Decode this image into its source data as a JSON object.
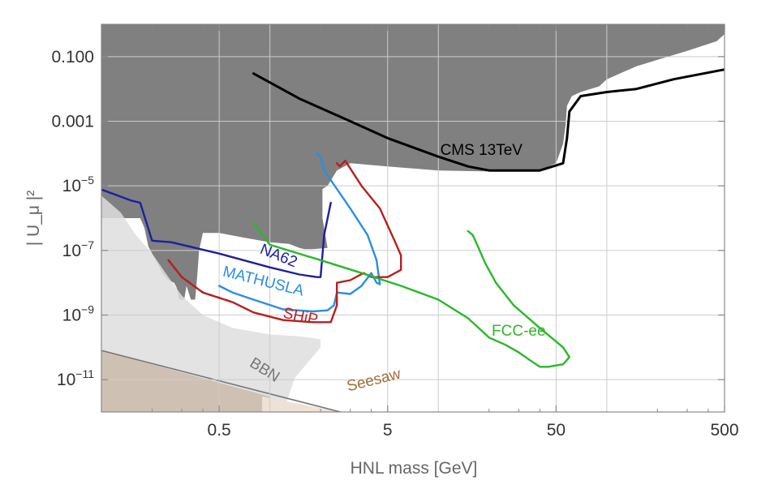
{
  "chart_data": {
    "type": "line",
    "xlabel": "HNL mass [GeV]",
    "ylabel": "| U_μ |²",
    "x_scale": "log",
    "y_scale": "log",
    "xlim": [
      0.1,
      500
    ],
    "ylim": [
      1e-12,
      1
    ],
    "x_ticks": [
      {
        "value": 0.5,
        "label": "0.5"
      },
      {
        "value": 5,
        "label": "5"
      },
      {
        "value": 50,
        "label": "50"
      },
      {
        "value": 500,
        "label": "500"
      }
    ],
    "x_minor_ticks": [
      0.2,
      0.3,
      0.4,
      2,
      3,
      4,
      20,
      30,
      40,
      200,
      300,
      400
    ],
    "x_gridlines": [
      0.5,
      1,
      5,
      10,
      50,
      100
    ],
    "y_ticks": [
      {
        "value": 0.1,
        "base": "0.100",
        "exp": ""
      },
      {
        "value": 0.001,
        "base": "0.001",
        "exp": ""
      },
      {
        "value": 1e-05,
        "base": "10",
        "exp": "−5"
      },
      {
        "value": 1e-07,
        "base": "10",
        "exp": "−7"
      },
      {
        "value": 1e-09,
        "base": "10",
        "exp": "−9"
      },
      {
        "value": 1e-11,
        "base": "10",
        "exp": "−11"
      }
    ],
    "grid": true,
    "regions": [
      {
        "name": "excluded",
        "color": "#808080",
        "points": [
          [
            0.1,
            1
          ],
          [
            500,
            1
          ],
          [
            500,
            0.5
          ],
          [
            450,
            0.3
          ],
          [
            300,
            0.15
          ],
          [
            200,
            0.08
          ],
          [
            150,
            0.05
          ],
          [
            100,
            0.02
          ],
          [
            90,
            0.012
          ],
          [
            70,
            0.008
          ],
          [
            62,
            0.006
          ],
          [
            58,
            0.003
          ],
          [
            57,
            0.0008
          ],
          [
            55,
            0.0002
          ],
          [
            50,
            5e-05
          ],
          [
            40,
            3e-05
          ],
          [
            20,
            2.8e-05
          ],
          [
            10,
            3e-05
          ],
          [
            5,
            4e-05
          ],
          [
            3,
            5e-05
          ],
          [
            2.5,
            3e-05
          ],
          [
            2.2,
            1e-05
          ],
          [
            2.05,
            8e-06
          ],
          [
            2.05,
            1e-06
          ],
          [
            2.2,
            1.2e-07
          ],
          [
            1.8,
            1.1e-07
          ],
          [
            1.6,
            1.1e-07
          ],
          [
            1.5,
            1.2e-07
          ],
          [
            1.3,
            1.6e-07
          ],
          [
            1.0,
            1.8e-07
          ],
          [
            0.7,
            2.5e-07
          ],
          [
            0.5,
            3.5e-07
          ],
          [
            0.4,
            3.5e-07
          ],
          [
            0.38,
            1e-07
          ],
          [
            0.37,
            1.5e-08
          ],
          [
            0.36,
            3e-09
          ],
          [
            0.34,
            3e-09
          ],
          [
            0.32,
            8e-09
          ],
          [
            0.31,
            3e-09
          ],
          [
            0.29,
            3e-09
          ],
          [
            0.28,
            7e-09
          ],
          [
            0.27,
            1e-08
          ],
          [
            0.25,
            1.2e-08
          ],
          [
            0.23,
            2e-08
          ],
          [
            0.21,
            5e-08
          ],
          [
            0.19,
            1.3e-07
          ],
          [
            0.18,
            5e-07
          ],
          [
            0.17,
            1e-06
          ],
          [
            0.15,
            1e-06
          ],
          [
            0.12,
            1e-06
          ],
          [
            0.1,
            1e-06
          ]
        ]
      },
      {
        "name": "light-gray",
        "color": "#dedede",
        "opacity": 0.85,
        "points": [
          [
            0.1,
            5e-06
          ],
          [
            0.13,
            1.5e-06
          ],
          [
            0.16,
            3e-07
          ],
          [
            0.2,
            8e-08
          ],
          [
            0.25,
            1.5e-08
          ],
          [
            0.3,
            4e-09
          ],
          [
            0.4,
            1e-09
          ],
          [
            0.6,
            4e-10
          ],
          [
            1.0,
            2.5e-10
          ],
          [
            1.5,
            2.2e-10
          ],
          [
            2.0,
            1.8e-10
          ],
          [
            2.0,
            1e-10
          ],
          [
            1.4,
            1.1e-11
          ],
          [
            1.2,
            1e-12
          ],
          [
            0.1,
            1e-12
          ]
        ]
      },
      {
        "name": "BBN-region",
        "color": "#cbbdae",
        "opacity": 0.9,
        "points": [
          [
            0.1,
            8e-11
          ],
          [
            1.0,
            3e-12
          ],
          [
            0.9,
            1e-12
          ],
          [
            0.1,
            1e-12
          ]
        ]
      },
      {
        "name": "Seesaw-region",
        "color": "#eee2d6",
        "opacity": 1,
        "points": [
          [
            0.9,
            3e-12
          ],
          [
            10,
            2.5e-13
          ],
          [
            50,
            2e-14
          ],
          [
            160,
            4e-15
          ],
          [
            10,
            1e-12
          ],
          [
            0.9,
            1e-12
          ]
        ]
      }
    ],
    "series": [
      {
        "name": "CMS 13TeV",
        "color": "#000000",
        "points": [
          [
            0.8,
            0.03
          ],
          [
            1.5,
            0.005
          ],
          [
            3,
            0.001
          ],
          [
            5,
            0.0003
          ],
          [
            10,
            8e-05
          ],
          [
            15,
            4e-05
          ],
          [
            20,
            3e-05
          ],
          [
            40,
            3e-05
          ],
          [
            55,
            5e-05
          ],
          [
            58,
            0.0003
          ],
          [
            60,
            0.002
          ],
          [
            70,
            0.006
          ],
          [
            100,
            0.008
          ],
          [
            150,
            0.01
          ],
          [
            250,
            0.02
          ],
          [
            500,
            0.04
          ]
        ]
      },
      {
        "name": "NA62",
        "color": "#1f1fa0",
        "points": [
          [
            0.1,
            7.7e-06
          ],
          [
            0.15,
            3.5e-06
          ],
          [
            0.17,
            3e-06
          ],
          [
            0.2,
            2e-07
          ],
          [
            0.26,
            1.8e-07
          ],
          [
            0.5,
            8e-08
          ],
          [
            1.0,
            3e-08
          ],
          [
            1.5,
            1.8e-08
          ],
          [
            1.9,
            1.5e-08
          ],
          [
            2.0,
            1.5e-08
          ],
          [
            2.1,
            3e-07
          ],
          [
            2.3,
            3e-06
          ]
        ]
      },
      {
        "name": "MATHUSLA",
        "color": "#2a8fe0",
        "points": [
          [
            0.5,
            8e-09
          ],
          [
            0.6,
            5e-09
          ],
          [
            0.8,
            3e-09
          ],
          [
            1.2,
            1.5e-09
          ],
          [
            1.8,
            1.3e-09
          ],
          [
            2.2,
            1.4e-09
          ],
          [
            2.4,
            2e-09
          ],
          [
            2.5,
            5e-09
          ],
          [
            3,
            4.5e-09
          ],
          [
            3.5,
            8e-09
          ],
          [
            4,
            2e-08
          ],
          [
            4.3,
            1e-08
          ],
          [
            4.5,
            9e-09
          ],
          [
            4.3,
            5e-08
          ],
          [
            3.8,
            3e-07
          ],
          [
            3.0,
            2e-06
          ],
          [
            2.5,
            8e-06
          ],
          [
            2.1,
            3e-05
          ],
          [
            2.0,
            8e-05
          ],
          [
            1.9,
            0.0001
          ]
        ]
      },
      {
        "name": "SHiP",
        "color": "#b52020",
        "points": [
          [
            0.25,
            5e-08
          ],
          [
            0.3,
            1.5e-08
          ],
          [
            0.4,
            5e-09
          ],
          [
            0.6,
            2.5e-09
          ],
          [
            0.8,
            1.2e-09
          ],
          [
            1.2,
            7e-10
          ],
          [
            1.8,
            6e-10
          ],
          [
            2.3,
            6e-10
          ],
          [
            2.5,
            2e-09
          ],
          [
            2.5,
            1e-08
          ],
          [
            3.0,
            1.2e-08
          ],
          [
            3.6,
            2e-08
          ],
          [
            4,
            1.5e-08
          ],
          [
            5,
            1.5e-08
          ],
          [
            6,
            2.5e-08
          ],
          [
            6,
            7e-08
          ],
          [
            5.5,
            2e-07
          ],
          [
            4.5,
            2e-06
          ],
          [
            3.5,
            1e-05
          ],
          [
            2.8,
            6e-05
          ],
          [
            2.6,
            4e-05
          ],
          [
            2.5,
            5e-05
          ]
        ]
      },
      {
        "name": "FCC-ee",
        "color": "#2ab82a",
        "points": [
          [
            0.8,
            7e-07
          ],
          [
            1.0,
            1.5e-07
          ],
          [
            2.0,
            5e-08
          ],
          [
            3.5,
            2e-08
          ],
          [
            6,
            8e-09
          ],
          [
            10,
            3e-09
          ],
          [
            15,
            8e-10
          ],
          [
            20,
            2e-10
          ],
          [
            25,
            1.2e-10
          ],
          [
            30,
            7e-11
          ],
          [
            35,
            4e-11
          ],
          [
            40,
            2.5e-11
          ],
          [
            45,
            2.5e-11
          ],
          [
            55,
            3e-11
          ],
          [
            60,
            5e-11
          ],
          [
            55,
            1e-10
          ],
          [
            40,
            4e-10
          ],
          [
            28,
            2e-09
          ],
          [
            22,
            1e-08
          ],
          [
            19,
            4e-08
          ],
          [
            17,
            1.5e-07
          ],
          [
            16,
            3e-07
          ],
          [
            15,
            4e-07
          ]
        ]
      }
    ],
    "ship_dashed_extension": [
      [
        0.25,
        5e-08
      ],
      [
        0.3,
        1.5e-08
      ],
      [
        0.4,
        5e-09
      ],
      [
        0.6,
        2.5e-09
      ]
    ],
    "annotations": [
      {
        "name": "CMS 13TeV",
        "text": "CMS 13TeV",
        "color": "#000000",
        "x": 18,
        "y": 9e-05
      },
      {
        "name": "NA62",
        "text": "NA62",
        "color": "#1f1fa0",
        "x": 1.1,
        "y": 5e-08
      },
      {
        "name": "MATHUSLA",
        "text": "MATHUSLA",
        "color": "#2a8fe0",
        "x": 0.9,
        "y": 8e-09
      },
      {
        "name": "SHiP",
        "text": "SHiP",
        "color": "#b52020",
        "x": 1.5,
        "y": 6.5e-10
      },
      {
        "name": "FCC-ee",
        "text": "FCC-ee",
        "color": "#2ab82a",
        "x": 30,
        "y": 2.3e-10
      },
      {
        "name": "BBN",
        "text": "BBN",
        "color": "#777777",
        "x": 0.9,
        "y": 1.5e-11
      },
      {
        "name": "Seesaw",
        "text": "Seesaw",
        "color": "#a06d3a",
        "x": 4.2,
        "y": 7e-12
      }
    ]
  }
}
